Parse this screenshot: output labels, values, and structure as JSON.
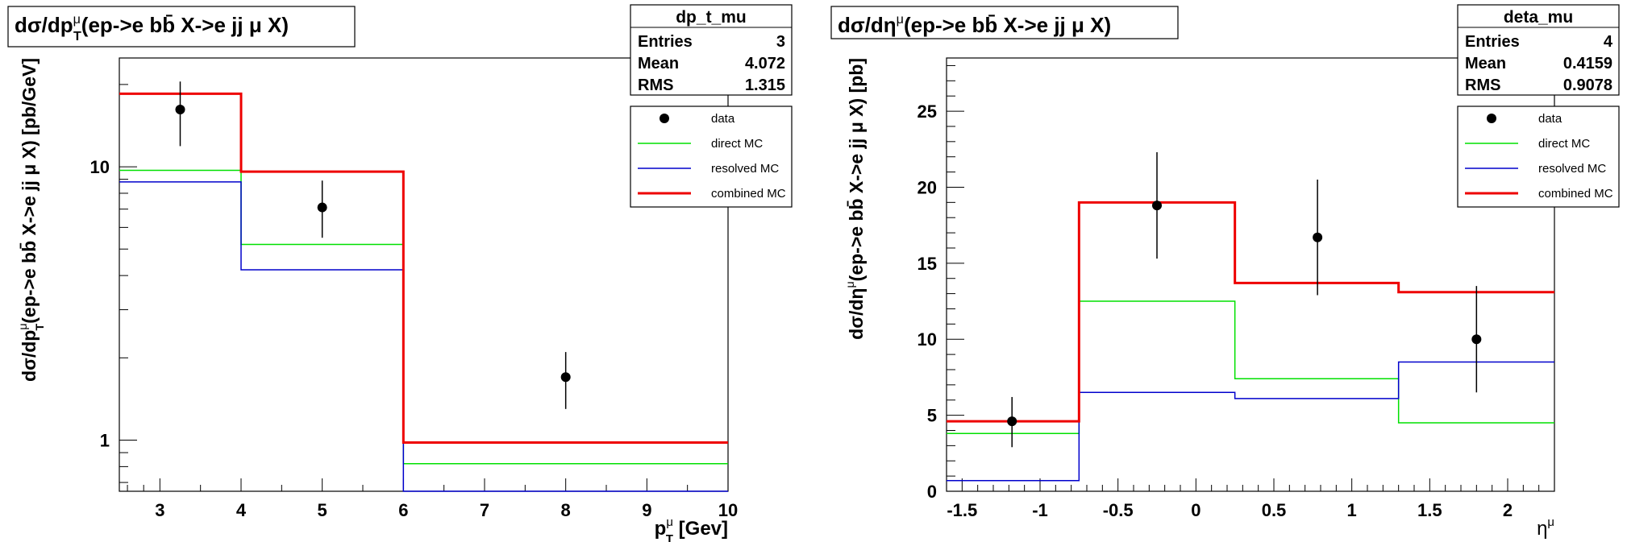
{
  "chart_data": [
    {
      "type": "histogram",
      "title_main": "dσ/dp",
      "title_sub": "T",
      "title_sup": "μ",
      "title_tail": "(ep->e bb̄ X->e jj μ X)",
      "xlabel_main": "p",
      "xlabel_sub": "T",
      "xlabel_sup": "μ",
      "xlabel_tail": " [Gev]",
      "ylabel_main": "dσ/dp",
      "ylabel_sub": "T",
      "ylabel_sup": "μ",
      "ylabel_tail": "(ep->e bb̄ X->e jj μ X) [pb/GeV]",
      "y_scale": "log",
      "xlim": [
        2.5,
        10
      ],
      "ylim": [
        0.65,
        25
      ],
      "x_ticks": [
        "3",
        "4",
        "5",
        "6",
        "7",
        "8",
        "9",
        "10"
      ],
      "y_ticks": [
        "1",
        "10"
      ],
      "stats": {
        "name": "dp_t_mu",
        "entries_label": "Entries",
        "entries": "3",
        "mean_label": "Mean",
        "mean": "4.072",
        "rms_label": "RMS",
        "rms": "1.315"
      },
      "legend": [
        {
          "label": "data",
          "color": "#000000",
          "style": "marker"
        },
        {
          "label": "direct MC",
          "color": "#00e000",
          "style": "line"
        },
        {
          "label": "resolved MC",
          "color": "#0000cc",
          "style": "line"
        },
        {
          "label": "combined MC",
          "color": "#ee0000",
          "style": "line"
        }
      ],
      "bin_edges": [
        2.5,
        4,
        6,
        10
      ],
      "series": [
        {
          "name": "direct MC",
          "values": [
            9.7,
            5.2,
            0.82
          ]
        },
        {
          "name": "resolved MC",
          "values": [
            8.8,
            4.2,
            0.62
          ]
        },
        {
          "name": "combined MC",
          "values": [
            18.5,
            9.6,
            0.98
          ]
        }
      ],
      "data_points": [
        {
          "x": 3.25,
          "y": 16.2,
          "err_low": 11.9,
          "err_high": 20.5
        },
        {
          "x": 5.0,
          "y": 7.1,
          "err_low": 5.5,
          "err_high": 8.9
        },
        {
          "x": 8.0,
          "y": 1.7,
          "err_low": 1.3,
          "err_high": 2.1
        }
      ]
    },
    {
      "type": "histogram",
      "title_main": "dσ/dη",
      "title_sup": "μ",
      "title_tail": "(ep->e bb̄ X->e jj μ X)",
      "xlabel_main": "η",
      "xlabel_sup": "μ",
      "ylabel_main": "dσ/dη",
      "ylabel_sup": "μ",
      "ylabel_tail": "(ep->e bb̄ X->e jj μ X) [pb]",
      "y_scale": "linear",
      "xlim": [
        -1.6,
        2.3
      ],
      "ylim": [
        0,
        28.5
      ],
      "x_ticks": [
        -1.5,
        -1,
        -0.5,
        0,
        0.5,
        1,
        1.5,
        2
      ],
      "x_tick_labels": [
        "-1.5",
        "-1",
        "-0.5",
        "0",
        "0.5",
        "1",
        "1.5",
        "2"
      ],
      "y_ticks": [
        0,
        5,
        10,
        15,
        20,
        25
      ],
      "y_tick_labels": [
        "0",
        "5",
        "10",
        "15",
        "20",
        "25"
      ],
      "stats": {
        "name": "deta_mu",
        "entries_label": "Entries",
        "entries": "4",
        "mean_label": "Mean",
        "mean": "0.4159",
        "rms_label": "RMS",
        "rms": "0.9078"
      },
      "legend": [
        {
          "label": "data",
          "color": "#000000",
          "style": "marker"
        },
        {
          "label": "direct MC",
          "color": "#00e000",
          "style": "line"
        },
        {
          "label": "resolved MC",
          "color": "#0000cc",
          "style": "line"
        },
        {
          "label": "combined MC",
          "color": "#ee0000",
          "style": "line"
        }
      ],
      "bin_edges": [
        -1.6,
        -0.75,
        0.25,
        1.3,
        2.3
      ],
      "series": [
        {
          "name": "direct MC",
          "values": [
            3.8,
            12.5,
            7.4,
            4.5
          ]
        },
        {
          "name": "resolved MC",
          "values": [
            0.7,
            6.5,
            6.1,
            8.5
          ]
        },
        {
          "name": "combined MC",
          "values": [
            4.6,
            19.0,
            13.7,
            13.1
          ]
        }
      ],
      "data_points": [
        {
          "x": -1.18,
          "y": 4.6,
          "err_low": 2.9,
          "err_high": 6.2
        },
        {
          "x": -0.25,
          "y": 18.8,
          "err_low": 15.3,
          "err_high": 22.3
        },
        {
          "x": 0.78,
          "y": 16.7,
          "err_low": 12.9,
          "err_high": 20.5
        },
        {
          "x": 1.8,
          "y": 10.0,
          "err_low": 6.5,
          "err_high": 13.5
        }
      ]
    }
  ]
}
